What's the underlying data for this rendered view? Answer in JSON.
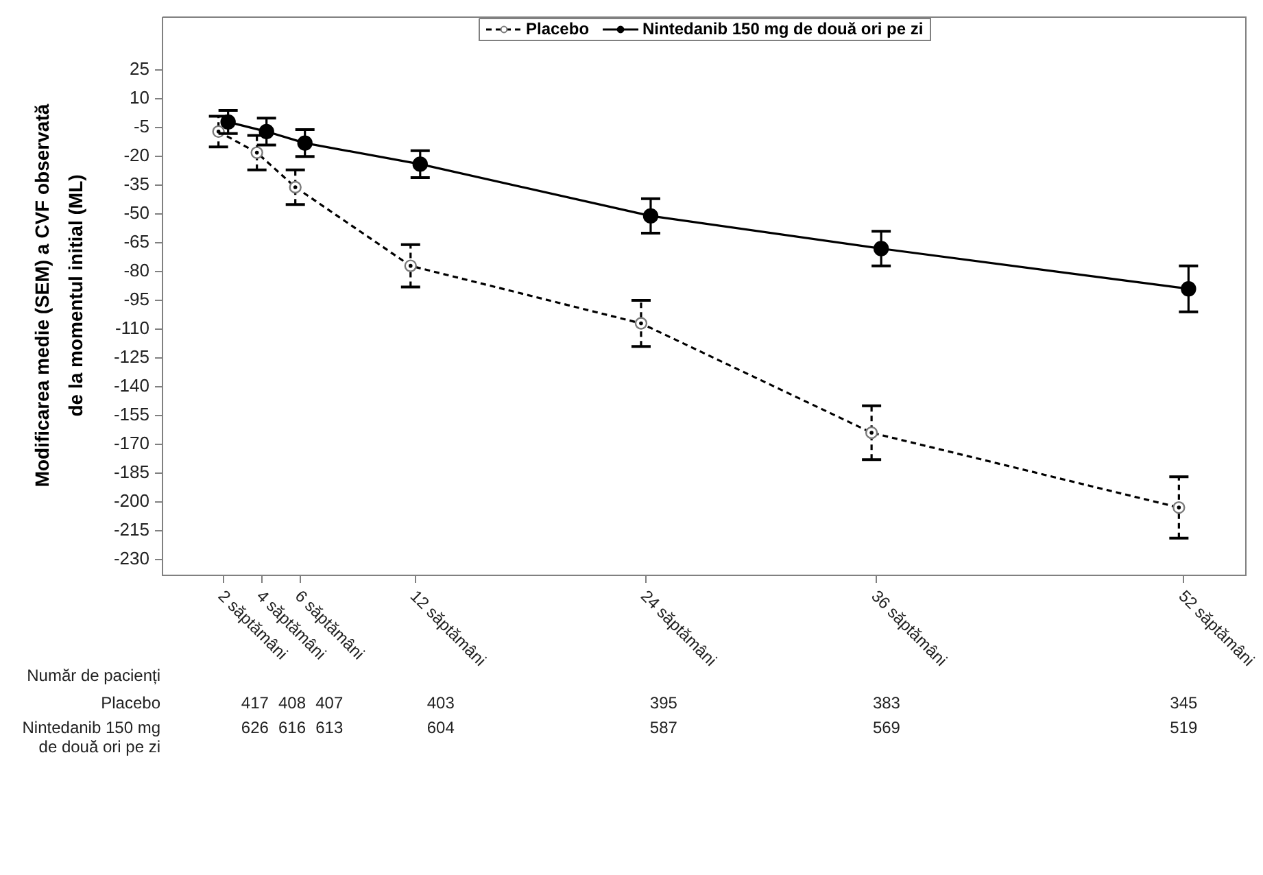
{
  "chart_data": {
    "type": "line",
    "ylabel": "Modificarea medie (SEM) a CVF observată\nde la momentul initial (ML)",
    "xlim": [
      -1.2,
      55.2
    ],
    "xticks": [
      {
        "value": 2,
        "label": "2 săptămâni"
      },
      {
        "value": 4,
        "label": "4 săptămâni"
      },
      {
        "value": 6,
        "label": "6 săptămâni"
      },
      {
        "value": 12,
        "label": "12 săptămâni"
      },
      {
        "value": 24,
        "label": "24 săptămâni"
      },
      {
        "value": 36,
        "label": "36 săptămâni"
      },
      {
        "value": 52,
        "label": "52 săptămâni"
      }
    ],
    "ylim": [
      -238,
      53
    ],
    "yticks": [
      25,
      10,
      -5,
      -20,
      -35,
      -50,
      -65,
      -80,
      -95,
      -110,
      -125,
      -140,
      -155,
      -170,
      -185,
      -200,
      -215,
      -230
    ],
    "series": [
      {
        "name": "Placebo",
        "color": "#000000",
        "line_style": "dashed",
        "x": [
          1.75,
          3.75,
          5.75,
          11.75,
          23.75,
          35.75,
          51.75
        ],
        "values": [
          -7,
          -18,
          -36,
          -77,
          -107,
          -164,
          -203
        ],
        "errors": [
          8,
          9,
          9,
          11,
          12,
          14,
          16
        ]
      },
      {
        "name": "Nintedanib 150 mg de două ori pe zi",
        "color": "#000000",
        "line_style": "solid",
        "x": [
          2.25,
          4.25,
          6.25,
          12.25,
          24.25,
          36.25,
          52.25
        ],
        "values": [
          -2,
          -7,
          -13,
          -24,
          -51,
          -68,
          -89
        ],
        "errors": [
          6,
          7,
          7,
          7,
          9,
          9,
          12
        ]
      }
    ],
    "marker": "circle",
    "legend": "top",
    "grid": false,
    "annotations": [
      "Număr de pacienți",
      "Placebo",
      "417",
      "408",
      "407",
      "403",
      "395",
      "383",
      "345",
      "Nintedanib 150 mg de două ori pe zi",
      "626",
      "616",
      "613",
      "604",
      "587",
      "569",
      "519"
    ]
  }
}
